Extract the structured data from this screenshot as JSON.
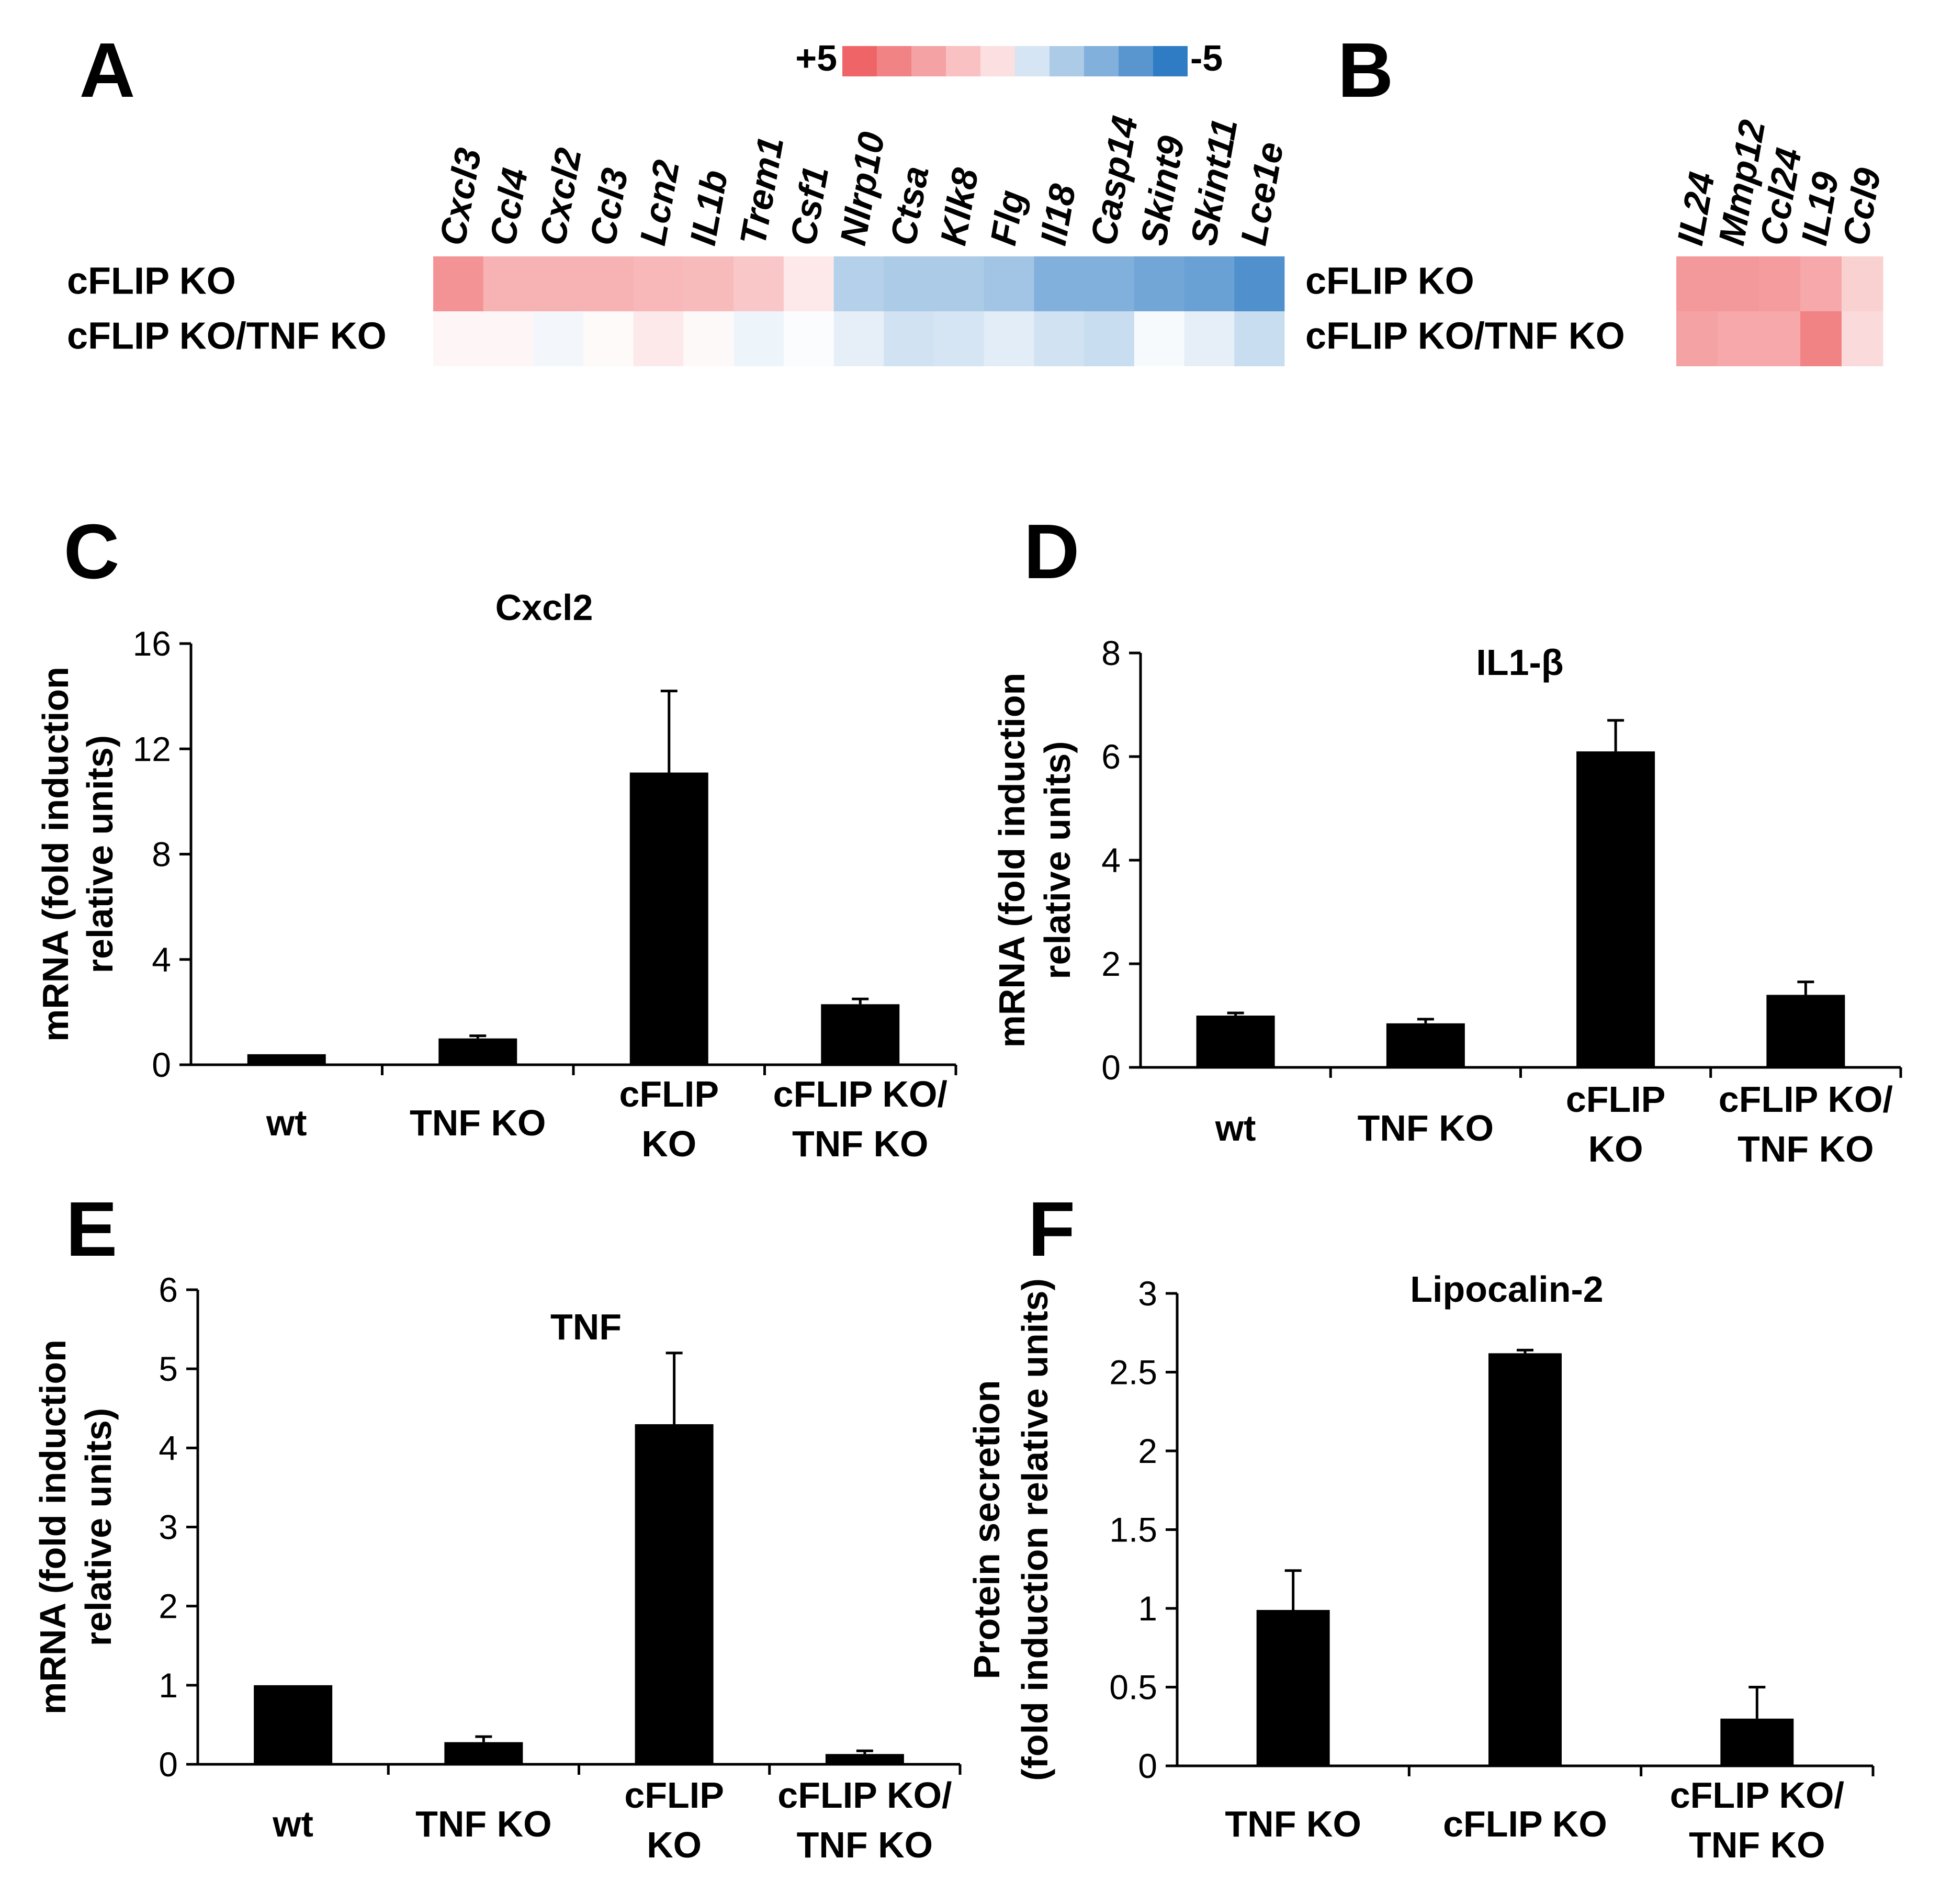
{
  "figure": {
    "colors": {
      "bar": "#000000",
      "background": "#ffffff",
      "heat_positive": "#ef6467",
      "heat_negative": "#2f7cc4",
      "heat_neutral": "#ffffff"
    }
  },
  "heatmap_legend": {
    "label_positive": "+5",
    "label_negative": "-5",
    "max": 5,
    "min": -5,
    "steps": [
      5,
      4,
      3,
      2,
      1,
      -1,
      -2,
      -3,
      -4,
      -5
    ]
  },
  "chart_data": [
    {
      "panel": "A",
      "type": "heatmap",
      "rows": [
        "cFLIP KO",
        "cFLIP KO/TNF KO"
      ],
      "columns": [
        "Cxcl3",
        "Ccl4",
        "Cxcl2",
        "Ccl3",
        "Lcn2",
        "IL1b",
        "Trem1",
        "Csf1",
        "Nlrp10",
        "Ctsa",
        "Klk8",
        "Flg",
        "Il18",
        "Casp14",
        "Skint9",
        "Skint11",
        "Lce1e"
      ],
      "values": [
        [
          3.5,
          2.5,
          2.5,
          2.5,
          2.3,
          2.2,
          1.8,
          0.7,
          -1.8,
          -2.0,
          -2.0,
          -2.2,
          -3.0,
          -3.0,
          -3.4,
          -3.6,
          -4.2
        ],
        [
          0.3,
          0.3,
          -0.3,
          0.15,
          0.7,
          0.2,
          -0.4,
          -0.1,
          -0.6,
          -1.1,
          -1.0,
          -0.7,
          -1.1,
          -1.3,
          -0.2,
          -0.6,
          -1.3
        ]
      ],
      "scale": [
        -5,
        5
      ]
    },
    {
      "panel": "B",
      "type": "heatmap",
      "rows": [
        "cFLIP KO",
        "cFLIP KO/TNF KO"
      ],
      "columns": [
        "IL24",
        "Mmp12",
        "Ccl24",
        "IL19",
        "Ccl9"
      ],
      "values": [
        [
          3.3,
          3.3,
          3.2,
          2.8,
          1.5
        ],
        [
          3.0,
          2.8,
          2.8,
          4.0,
          1.2
        ]
      ],
      "scale": [
        -5,
        5
      ]
    },
    {
      "panel": "C",
      "type": "bar",
      "title": "Cxcl2",
      "ylabel": "mRNA (fold induction relative units)",
      "ylabel_lines": [
        "mRNA (fold induction",
        "relative units)"
      ],
      "categories": [
        "wt",
        "TNF KO",
        "cFLIP KO",
        "cFLIP KO/ TNF KO"
      ],
      "category_lines": [
        [
          "wt"
        ],
        [
          "TNF KO"
        ],
        [
          "cFLIP",
          "KO"
        ],
        [
          "cFLIP KO/",
          "TNF KO"
        ]
      ],
      "values": [
        0.4,
        1.0,
        11.1,
        2.3
      ],
      "errors": [
        0,
        0.1,
        3.1,
        0.2
      ],
      "ylim": [
        0,
        16
      ],
      "yticks": [
        0,
        4,
        8,
        12,
        16
      ],
      "ytick_labels": [
        "0",
        "4",
        "8",
        "12",
        "16"
      ]
    },
    {
      "panel": "D",
      "type": "bar",
      "title": "IL1-β",
      "ylabel": "mRNA (fold induction relative units)",
      "ylabel_lines": [
        "mRNA (fold induction",
        "relative units)"
      ],
      "categories": [
        "wt",
        "TNF KO",
        "cFLIP KO",
        "cFLIP KO/ TNF KO"
      ],
      "category_lines": [
        [
          "wt"
        ],
        [
          "TNF KO"
        ],
        [
          "cFLIP",
          "KO"
        ],
        [
          "cFLIP KO/",
          "TNF KO"
        ]
      ],
      "values": [
        1.0,
        0.85,
        6.1,
        1.4
      ],
      "errors": [
        0.05,
        0.08,
        0.6,
        0.25
      ],
      "ylim": [
        0,
        8
      ],
      "yticks": [
        0,
        2,
        4,
        6,
        8
      ],
      "ytick_labels": [
        "0",
        "2",
        "4",
        "6",
        "8"
      ]
    },
    {
      "panel": "E",
      "type": "bar",
      "title": "TNF",
      "ylabel": "mRNA (fold induction relative units)",
      "ylabel_lines": [
        "mRNA (fold induction",
        "relative units)"
      ],
      "categories": [
        "wt",
        "TNF KO",
        "cFLIP KO",
        "cFLIP KO/ TNF KO"
      ],
      "category_lines": [
        [
          "wt"
        ],
        [
          "TNF KO"
        ],
        [
          "cFLIP",
          "KO"
        ],
        [
          "cFLIP KO/",
          "TNF KO"
        ]
      ],
      "values": [
        1.0,
        0.28,
        4.3,
        0.13
      ],
      "errors": [
        0,
        0.07,
        0.9,
        0.04
      ],
      "ylim": [
        0,
        6
      ],
      "yticks": [
        0,
        1,
        2,
        3,
        4,
        5,
        6
      ],
      "ytick_labels": [
        "0",
        "1",
        "2",
        "3",
        "4",
        "5",
        "6"
      ]
    },
    {
      "panel": "F",
      "type": "bar",
      "title": "Lipocalin-2",
      "ylabel": "Protein secretion (fold induction relative units)",
      "ylabel_lines": [
        "Protein secretion",
        "(fold induction relative units)"
      ],
      "categories": [
        "TNF KO",
        "cFLIP KO",
        "cFLIP KO/ TNF KO"
      ],
      "category_lines": [
        [
          "TNF KO"
        ],
        [
          "cFLIP KO"
        ],
        [
          "cFLIP KO/",
          "TNF KO"
        ]
      ],
      "values": [
        0.99,
        2.62,
        0.3
      ],
      "errors": [
        0.25,
        0.02,
        0.2
      ],
      "ylim": [
        0,
        3
      ],
      "yticks": [
        0,
        0.5,
        1,
        1.5,
        2,
        2.5,
        3
      ],
      "ytick_labels": [
        "0",
        "0.5",
        "1",
        "1.5",
        "2",
        "2.5",
        "3"
      ]
    }
  ]
}
